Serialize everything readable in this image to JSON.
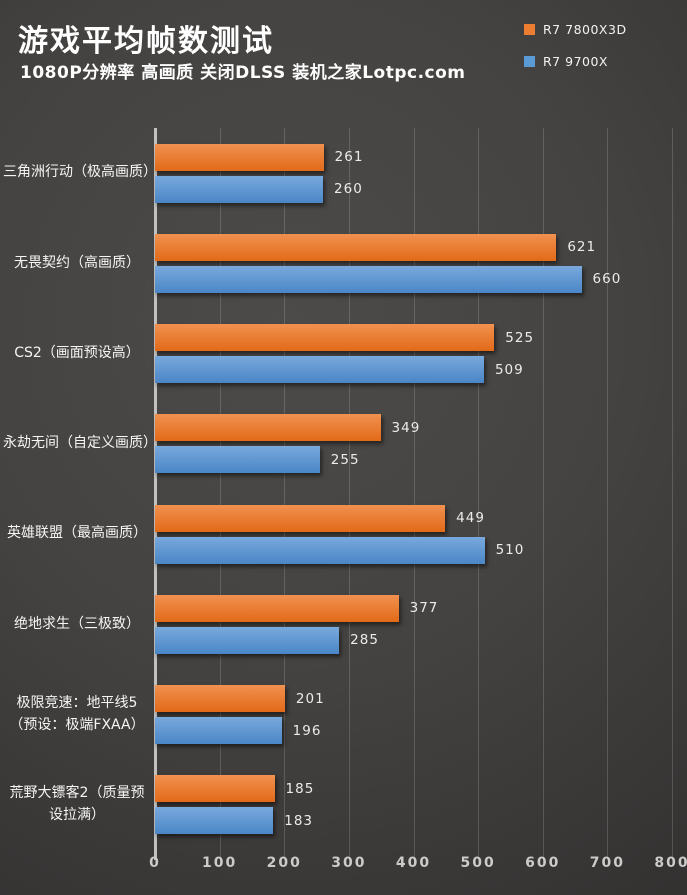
{
  "header": {
    "title": "游戏平均帧数测试",
    "subtitle": "1080P分辨率 高画质 关闭DLSS  装机之家Lotpc.com"
  },
  "legend": [
    {
      "label": "R7 7800X3D",
      "color": "#ED7D31"
    },
    {
      "label": "R7 9700X",
      "color": "#5B9BD5"
    }
  ],
  "colors": {
    "background_center": "#4D4B49",
    "background_edge": "#2B2A29",
    "orange_top": "#F19150",
    "orange_bottom": "#E26A18",
    "blue_top": "#79A9DD",
    "blue_bottom": "#4A86C6",
    "axis_line": "#C2C1C0",
    "gridline": "rgba(255,255,255,0.16)",
    "text": "#F5F5F5"
  },
  "chart_data": {
    "type": "bar",
    "orientation": "horizontal",
    "title": "游戏平均帧数测试",
    "subtitle": "1080P分辨率 高画质 关闭DLSS 装机之家Lotpc.com",
    "categories": [
      "三角洲行动（极高画质）",
      "无畏契约（高画质）",
      "CS2（画面预设高）",
      "永劫无间（自定义画质）",
      "英雄联盟（最高画质）",
      "绝地求生（三极致）",
      "极限竞速：地平线5（预设：极端FXAA）",
      "荒野大镖客2（质量预设拉满）"
    ],
    "series": [
      {
        "name": "R7 7800X3D",
        "color": "#ED7D31",
        "values": [
          261,
          621,
          525,
          349,
          449,
          377,
          201,
          185
        ]
      },
      {
        "name": "R7 9700X",
        "color": "#5B9BD5",
        "values": [
          260,
          660,
          509,
          255,
          510,
          285,
          196,
          183
        ]
      }
    ],
    "xlabel": "",
    "ylabel": "",
    "xlim": [
      0,
      800
    ],
    "xticks": [
      0,
      100,
      200,
      300,
      400,
      500,
      600,
      700,
      800
    ],
    "grid": true,
    "legend_position": "top-right"
  }
}
